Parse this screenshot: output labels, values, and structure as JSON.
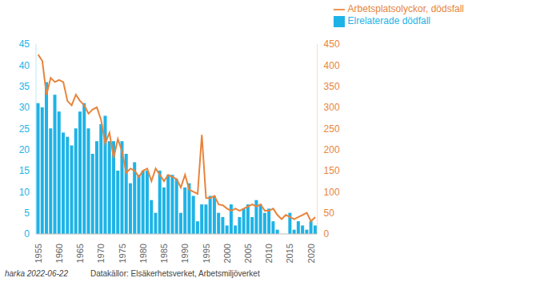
{
  "chart_data": {
    "type": "bar",
    "categories": [
      "1955",
      null,
      null,
      null,
      null,
      "1960",
      null,
      null,
      null,
      null,
      "1965",
      null,
      null,
      null,
      null,
      "1970",
      null,
      null,
      null,
      null,
      "1975",
      null,
      null,
      null,
      null,
      "1980",
      null,
      null,
      null,
      null,
      "1985",
      null,
      null,
      null,
      null,
      "1990",
      null,
      null,
      null,
      null,
      "1995",
      null,
      null,
      null,
      null,
      "2000",
      null,
      null,
      null,
      null,
      "2005",
      null,
      null,
      null,
      null,
      "2010",
      null,
      null,
      null,
      null,
      "2015",
      null,
      null,
      null,
      null,
      "2020",
      null
    ],
    "series": [
      {
        "name": "Elrelaterade dödfall",
        "type": "bar",
        "color": "#1eb3e6",
        "values": [
          31,
          30,
          36,
          25,
          33,
          29,
          24,
          23,
          21,
          25,
          29,
          31,
          25,
          19,
          22,
          26,
          28,
          22,
          22,
          15,
          22,
          19,
          12,
          17,
          14,
          15,
          15,
          8,
          5,
          15,
          11,
          14,
          14,
          13,
          5,
          11,
          12,
          9,
          3,
          7,
          7,
          9,
          9,
          5,
          4,
          2,
          7,
          2,
          4,
          6,
          7,
          4,
          8,
          7,
          5,
          6,
          3,
          1,
          0,
          0,
          5,
          1,
          3,
          2,
          1,
          3,
          2
        ]
      },
      {
        "name": "Arbetsplatsolyckor, dödsfall",
        "type": "line",
        "axis": "y2",
        "color": "#e8843c",
        "marker": "none",
        "values": [
          425,
          410,
          330,
          370,
          360,
          365,
          360,
          315,
          305,
          330,
          315,
          305,
          285,
          295,
          300,
          270,
          215,
          240,
          180,
          225,
          195,
          145,
          155,
          150,
          135,
          150,
          155,
          125,
          155,
          140,
          125,
          140,
          135,
          130,
          110,
          140,
          105,
          100,
          95,
          235,
          85,
          85,
          90,
          70,
          68,
          60,
          55,
          60,
          55,
          60,
          65,
          70,
          65,
          70,
          55,
          55,
          60,
          45,
          35,
          45,
          40,
          35,
          40,
          45,
          50,
          30,
          40
        ]
      }
    ],
    "ylim": [
      0,
      45
    ],
    "yticks": [
      0,
      5,
      10,
      15,
      20,
      25,
      30,
      35,
      40,
      45
    ],
    "y2lim": [
      0,
      450
    ],
    "y2ticks": [
      0,
      50,
      100,
      150,
      200,
      250,
      300,
      350,
      400,
      450
    ],
    "grid": false,
    "legend": "upper right",
    "annotations": [
      "harka 2022-06-22",
      "Datakällor: Elsäkerhetsverket, Arbetsmiljöverket"
    ]
  }
}
